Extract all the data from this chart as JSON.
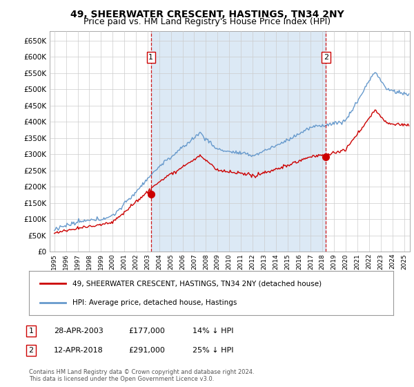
{
  "title": "49, SHEERWATER CRESCENT, HASTINGS, TN34 2NY",
  "subtitle": "Price paid vs. HM Land Registry's House Price Index (HPI)",
  "sale1_date": "28-APR-2003",
  "sale1_price": 177000,
  "sale1_label": "1",
  "sale1_hpi_note": "14% ↓ HPI",
  "sale1_year": 2003.29,
  "sale2_date": "12-APR-2018",
  "sale2_price": 291000,
  "sale2_label": "2",
  "sale2_hpi_note": "25% ↓ HPI",
  "sale2_year": 2018.29,
  "legend_property": "49, SHEERWATER CRESCENT, HASTINGS, TN34 2NY (detached house)",
  "legend_hpi": "HPI: Average price, detached house, Hastings",
  "footer": "Contains HM Land Registry data © Crown copyright and database right 2024.\nThis data is licensed under the Open Government Licence v3.0.",
  "property_color": "#cc0000",
  "hpi_color": "#6699cc",
  "shade_color": "#dce9f5",
  "vline_color": "#cc0000",
  "marker_color": "#cc0000",
  "ylim_min": 0,
  "ylim_max": 680000,
  "yticks": [
    0,
    50000,
    100000,
    150000,
    200000,
    250000,
    300000,
    350000,
    400000,
    450000,
    500000,
    550000,
    600000,
    650000
  ],
  "background_color": "#ffffff",
  "grid_color": "#cccccc",
  "title_fontsize": 10,
  "subtitle_fontsize": 9
}
